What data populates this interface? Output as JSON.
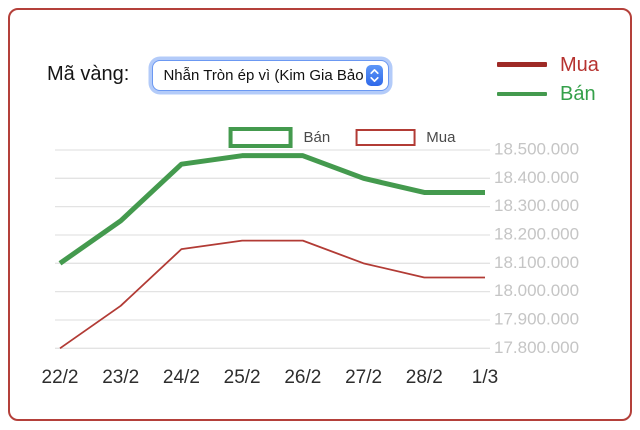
{
  "header": {
    "label": "Mã vàng:",
    "select_value": "Nhẫn Tròn ép vì (Kim Gia Bảo"
  },
  "legend": {
    "items": [
      {
        "label": "Mua",
        "swatch_color": "#9e2a26",
        "text_color": "#b63330"
      },
      {
        "label": "Bán",
        "swatch_color": "#449a4e",
        "text_color": "#34a04a"
      }
    ]
  },
  "chart_data": {
    "type": "line",
    "title": "",
    "categories": [
      "22/2",
      "23/2",
      "24/2",
      "25/2",
      "26/2",
      "27/2",
      "28/2",
      "1/3"
    ],
    "series": [
      {
        "name": "Bán",
        "color": "#449a4e",
        "stroke_width": 5,
        "values": [
          18100000,
          18250000,
          18450000,
          18480000,
          18480000,
          18400000,
          18350000,
          18350000
        ]
      },
      {
        "name": "Mua",
        "color": "#b23b35",
        "stroke_width": 1.8,
        "values": [
          17800000,
          17950000,
          18150000,
          18180000,
          18180000,
          18100000,
          18050000,
          18050000
        ]
      }
    ],
    "ylim": [
      17800000,
      18500000
    ],
    "y_tick_step": 100000,
    "y_ticks": [
      "18.500.000",
      "18.400.000",
      "18.300.000",
      "18.200.000",
      "18.100.000",
      "18.000.000",
      "17.900.000",
      "17.800.000"
    ],
    "grid": true,
    "legend_position": "top-center",
    "grid_color": "#e3e3e3",
    "y_tick_color": "#c5c5c5",
    "x_tick_color": "#2d2d2d"
  },
  "frame_color": "#b4403a"
}
